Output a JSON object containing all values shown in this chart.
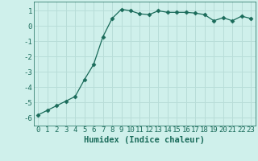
{
  "x": [
    0,
    1,
    2,
    3,
    4,
    5,
    6,
    7,
    8,
    9,
    10,
    11,
    12,
    13,
    14,
    15,
    16,
    17,
    18,
    19,
    20,
    21,
    22,
    23
  ],
  "y": [
    -5.8,
    -5.5,
    -5.2,
    -4.9,
    -4.6,
    -3.5,
    -2.5,
    -0.7,
    0.5,
    1.1,
    1.0,
    0.8,
    0.75,
    1.0,
    0.9,
    0.9,
    0.9,
    0.85,
    0.75,
    0.35,
    0.55,
    0.35,
    0.65,
    0.5
  ],
  "xlim": [
    -0.5,
    23.5
  ],
  "ylim": [
    -6.5,
    1.6
  ],
  "xticks": [
    0,
    1,
    2,
    3,
    4,
    5,
    6,
    7,
    8,
    9,
    10,
    11,
    12,
    13,
    14,
    15,
    16,
    17,
    18,
    19,
    20,
    21,
    22,
    23
  ],
  "yticks": [
    -6,
    -5,
    -4,
    -3,
    -2,
    -1,
    0,
    1
  ],
  "xlabel": "Humidex (Indice chaleur)",
  "line_color": "#1a6b5a",
  "marker": "D",
  "marker_size": 2.5,
  "bg_color": "#cff0eb",
  "grid_color": "#b8ddd8",
  "tick_label_fontsize": 6.5,
  "xlabel_fontsize": 7.5
}
